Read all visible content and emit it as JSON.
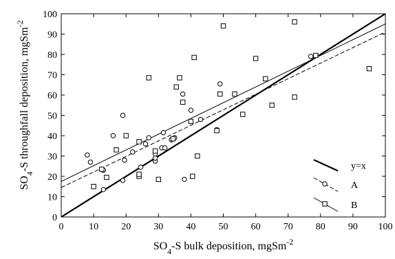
{
  "chart_data": {
    "type": "scatter",
    "xlabel": {
      "main": "SO",
      "sub": "4",
      "rest": "-S bulk deposition, mgSm",
      "sup": "-2"
    },
    "ylabel": {
      "main": "SO",
      "sub": "4",
      "rest": "-S throughfall deposition, mgSm",
      "sup": "-2"
    },
    "xlim": [
      0,
      100
    ],
    "ylim": [
      0,
      100
    ],
    "xticks": [
      "0",
      "10",
      "20",
      "30",
      "40",
      "50",
      "60",
      "70",
      "80",
      "90",
      "100"
    ],
    "yticks": [
      "0",
      "10",
      "20",
      "30",
      "40",
      "50",
      "60",
      "70",
      "80",
      "90",
      "100"
    ],
    "grid": false,
    "legend_position": "bottom-right",
    "series": [
      {
        "name": "y=x",
        "kind": "line",
        "style": "solid-thick",
        "marker": "none",
        "points": [
          [
            0,
            0
          ],
          [
            100,
            100
          ]
        ]
      },
      {
        "name": "A",
        "kind": "scatter+fit",
        "style": "dashed",
        "marker": "circle",
        "fit": [
          [
            0,
            14.5
          ],
          [
            100,
            91
          ]
        ],
        "points": [
          [
            8,
            30.5
          ],
          [
            9,
            27
          ],
          [
            13,
            13.5
          ],
          [
            13,
            23
          ],
          [
            16,
            40
          ],
          [
            19,
            18
          ],
          [
            19,
            50
          ],
          [
            19.5,
            28
          ],
          [
            22,
            32
          ],
          [
            24.5,
            24.5
          ],
          [
            26,
            36
          ],
          [
            27,
            39
          ],
          [
            29,
            27.5
          ],
          [
            29,
            29
          ],
          [
            29,
            31
          ],
          [
            31,
            34
          ],
          [
            31.5,
            41.5
          ],
          [
            32,
            34
          ],
          [
            34,
            38
          ],
          [
            35,
            39
          ],
          [
            37.5,
            60.5
          ],
          [
            38,
            18.5
          ],
          [
            40,
            52.5
          ],
          [
            43,
            48
          ],
          [
            48,
            43
          ],
          [
            49,
            65.5
          ],
          [
            77,
            79
          ]
        ]
      },
      {
        "name": "B",
        "kind": "scatter+fit",
        "style": "solid-thin",
        "marker": "square",
        "fit": [
          [
            0,
            17.5
          ],
          [
            100,
            95
          ]
        ],
        "points": [
          [
            10,
            15
          ],
          [
            12.5,
            23.5
          ],
          [
            14,
            19.5
          ],
          [
            17,
            33
          ],
          [
            20,
            40
          ],
          [
            24,
            20
          ],
          [
            24,
            21
          ],
          [
            24,
            37
          ],
          [
            27,
            68.5
          ],
          [
            29,
            32.5
          ],
          [
            30,
            18.5
          ],
          [
            34.5,
            38.5
          ],
          [
            35.5,
            64
          ],
          [
            36.5,
            68.5
          ],
          [
            37.5,
            56.5
          ],
          [
            40,
            47
          ],
          [
            40.5,
            20
          ],
          [
            41,
            78.5
          ],
          [
            42,
            30
          ],
          [
            48,
            42.5
          ],
          [
            49,
            60.5
          ],
          [
            50,
            94
          ],
          [
            53.5,
            60.5
          ],
          [
            56,
            50.5
          ],
          [
            60,
            78
          ],
          [
            63,
            68
          ],
          [
            65,
            55
          ],
          [
            72,
            59
          ],
          [
            72,
            96
          ],
          [
            78.5,
            79.5
          ],
          [
            95,
            73
          ]
        ]
      }
    ]
  }
}
